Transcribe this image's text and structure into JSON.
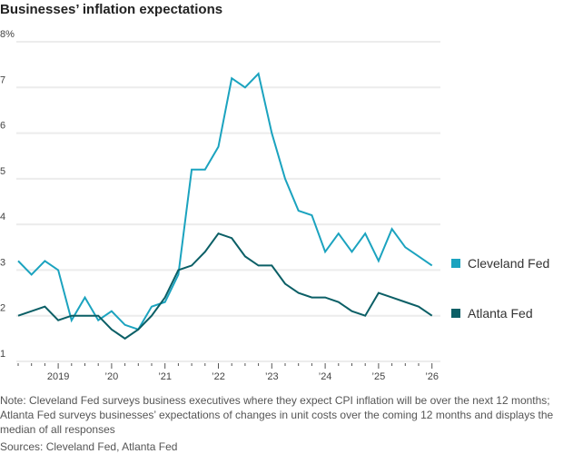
{
  "title": "Businesses’ inflation expectations",
  "note": "Note: Cleveland Fed surveys business executives where they expect CPI inflation will be over the next 12 months; Atlanta Fed surveys businesses’ expectations of changes in unit costs over the coming 12 months and displays the median of all responses",
  "sources": "Sources: Cleveland Fed, Atlanta Fed",
  "chart_data": {
    "type": "line",
    "title": "Businesses’ inflation expectations",
    "xlabel": "",
    "ylabel": "",
    "ylim": [
      1,
      8
    ],
    "xlim": [
      "2018Q2",
      "2026Q1"
    ],
    "y_ticks": [
      "8%",
      "7",
      "6",
      "5",
      "4",
      "3",
      "2",
      "1"
    ],
    "x_ticks": [
      "2019",
      "’20",
      "’21",
      "’22",
      "’23",
      "’24",
      "’25",
      "’26"
    ],
    "grid": true,
    "legend_placement": "right",
    "x": [
      "2018Q2",
      "2018Q3",
      "2018Q4",
      "2019Q1",
      "2019Q2",
      "2019Q3",
      "2019Q4",
      "2020Q1",
      "2020Q2",
      "2020Q3",
      "2020Q4",
      "2021Q1",
      "2021Q2",
      "2021Q3",
      "2021Q4",
      "2022Q1",
      "2022Q2",
      "2022Q3",
      "2022Q4",
      "2023Q1",
      "2023Q2",
      "2023Q3",
      "2023Q4",
      "2024Q1",
      "2024Q2",
      "2024Q3",
      "2024Q4",
      "2025Q1",
      "2025Q2",
      "2025Q3",
      "2025Q4",
      "2026Q1"
    ],
    "series": [
      {
        "name": "Cleveland Fed",
        "color": "#1ba3bf",
        "values": [
          3.2,
          2.9,
          3.2,
          3.0,
          1.9,
          2.4,
          1.9,
          2.1,
          1.8,
          1.7,
          2.2,
          2.3,
          2.9,
          5.2,
          5.2,
          5.7,
          7.2,
          7.0,
          7.3,
          6.0,
          5.0,
          4.3,
          4.2,
          3.4,
          3.8,
          3.4,
          3.8,
          3.2,
          3.9,
          3.5,
          3.3,
          3.1
        ]
      },
      {
        "name": "Atlanta Fed",
        "color": "#0b5f66",
        "values": [
          2.0,
          2.1,
          2.2,
          1.9,
          2.0,
          2.0,
          2.0,
          1.7,
          1.5,
          1.7,
          2.0,
          2.4,
          3.0,
          3.1,
          3.4,
          3.8,
          3.7,
          3.3,
          3.1,
          3.1,
          2.7,
          2.5,
          2.4,
          2.4,
          2.3,
          2.1,
          2.0,
          2.5,
          2.4,
          2.3,
          2.2,
          2.0
        ]
      }
    ]
  }
}
